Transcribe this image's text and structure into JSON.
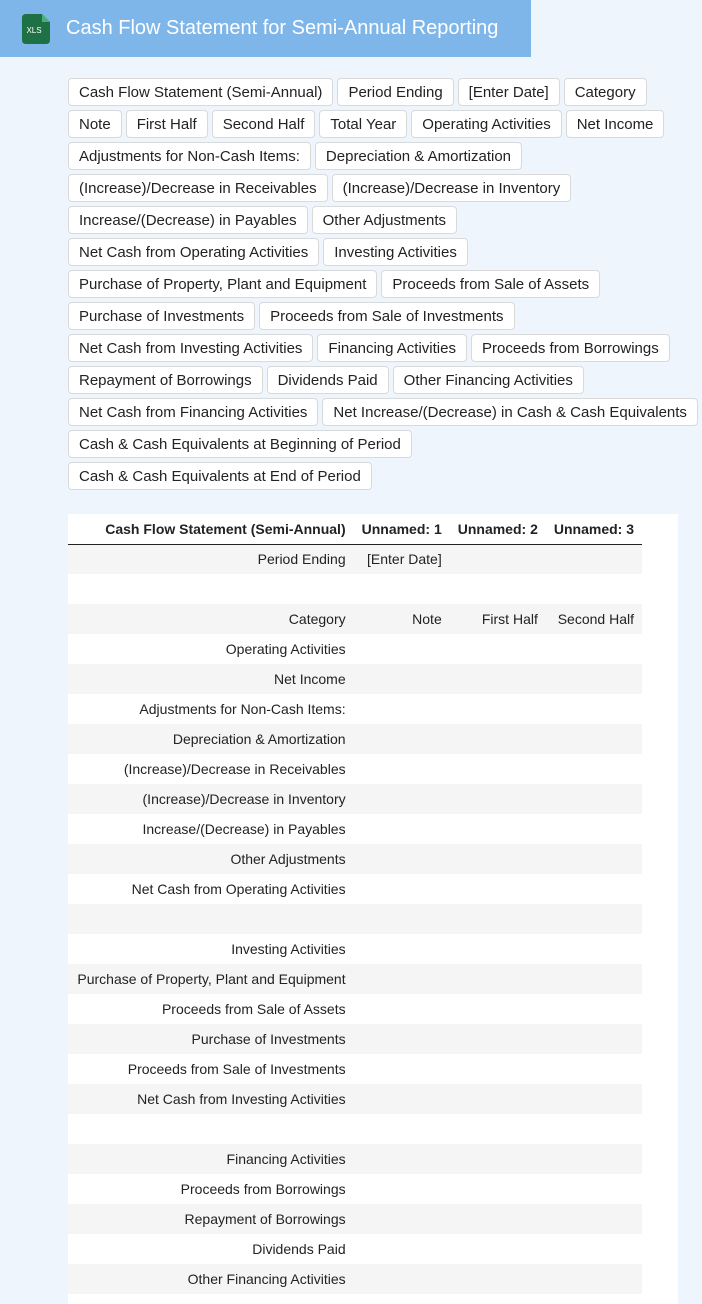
{
  "header": {
    "title": "Cash Flow Statement for Semi-Annual Reporting",
    "icon_label": "XLS"
  },
  "tags": [
    "Cash Flow Statement (Semi-Annual)",
    "Period Ending",
    "[Enter Date]",
    "Category",
    "Note",
    "First Half",
    "Second Half",
    "Total Year",
    "Operating Activities",
    "Net Income",
    "Adjustments for Non-Cash Items:",
    "Depreciation & Amortization",
    "(Increase)/Decrease in Receivables",
    "(Increase)/Decrease in Inventory",
    "Increase/(Decrease) in Payables",
    "Other Adjustments",
    "Net Cash from Operating Activities",
    "Investing Activities",
    "Purchase of Property, Plant and Equipment",
    "Proceeds from Sale of Assets",
    "Purchase of Investments",
    "Proceeds from Sale of Investments",
    "Net Cash from Investing Activities",
    "Financing Activities",
    "Proceeds from Borrowings",
    "Repayment of Borrowings",
    "Dividends Paid",
    "Other Financing Activities",
    "Net Cash from Financing Activities",
    "Net Increase/(Decrease) in Cash & Cash Equivalents",
    "Cash & Cash Equivalents at Beginning of Period",
    "Cash & Cash Equivalents at End of Period"
  ],
  "table": {
    "columns": [
      "Cash Flow Statement (Semi-Annual)",
      "Unnamed: 1",
      "Unnamed: 2",
      "Unnamed: 3"
    ],
    "rows": [
      {
        "index": 0,
        "cells": [
          "Period Ending",
          "[Enter Date]"
        ]
      },
      {
        "index": 1,
        "cells": []
      },
      {
        "index": 2,
        "cells": [
          "Category",
          "Note",
          "First Half",
          "Second Half"
        ]
      },
      {
        "index": 3,
        "cells": [
          "Operating Activities"
        ]
      },
      {
        "index": 4,
        "cells": [
          "Net Income"
        ]
      },
      {
        "index": 5,
        "cells": [
          "Adjustments for Non-Cash Items:"
        ]
      },
      {
        "index": 6,
        "cells": [
          "Depreciation & Amortization"
        ]
      },
      {
        "index": 7,
        "cells": [
          "(Increase)/Decrease in Receivables"
        ]
      },
      {
        "index": 8,
        "cells": [
          "(Increase)/Decrease in Inventory"
        ]
      },
      {
        "index": 9,
        "cells": [
          "Increase/(Decrease) in Payables"
        ]
      },
      {
        "index": 10,
        "cells": [
          "Other Adjustments"
        ]
      },
      {
        "index": 11,
        "cells": [
          "Net Cash from Operating Activities"
        ]
      },
      {
        "index": 12,
        "cells": []
      },
      {
        "index": 13,
        "cells": [
          "Investing Activities"
        ]
      },
      {
        "index": 14,
        "cells": [
          "Purchase of Property, Plant and Equipment"
        ]
      },
      {
        "index": 15,
        "cells": [
          "Proceeds from Sale of Assets"
        ]
      },
      {
        "index": 16,
        "cells": [
          "Purchase of Investments"
        ]
      },
      {
        "index": 17,
        "cells": [
          "Proceeds from Sale of Investments"
        ]
      },
      {
        "index": 18,
        "cells": [
          "Net Cash from Investing Activities"
        ]
      },
      {
        "index": 19,
        "cells": []
      },
      {
        "index": 20,
        "cells": [
          "Financing Activities"
        ]
      },
      {
        "index": 21,
        "cells": [
          "Proceeds from Borrowings"
        ]
      },
      {
        "index": 22,
        "cells": [
          "Repayment of Borrowings"
        ]
      },
      {
        "index": 23,
        "cells": [
          "Dividends Paid"
        ]
      },
      {
        "index": 24,
        "cells": [
          "Other Financing Activities"
        ]
      }
    ]
  }
}
